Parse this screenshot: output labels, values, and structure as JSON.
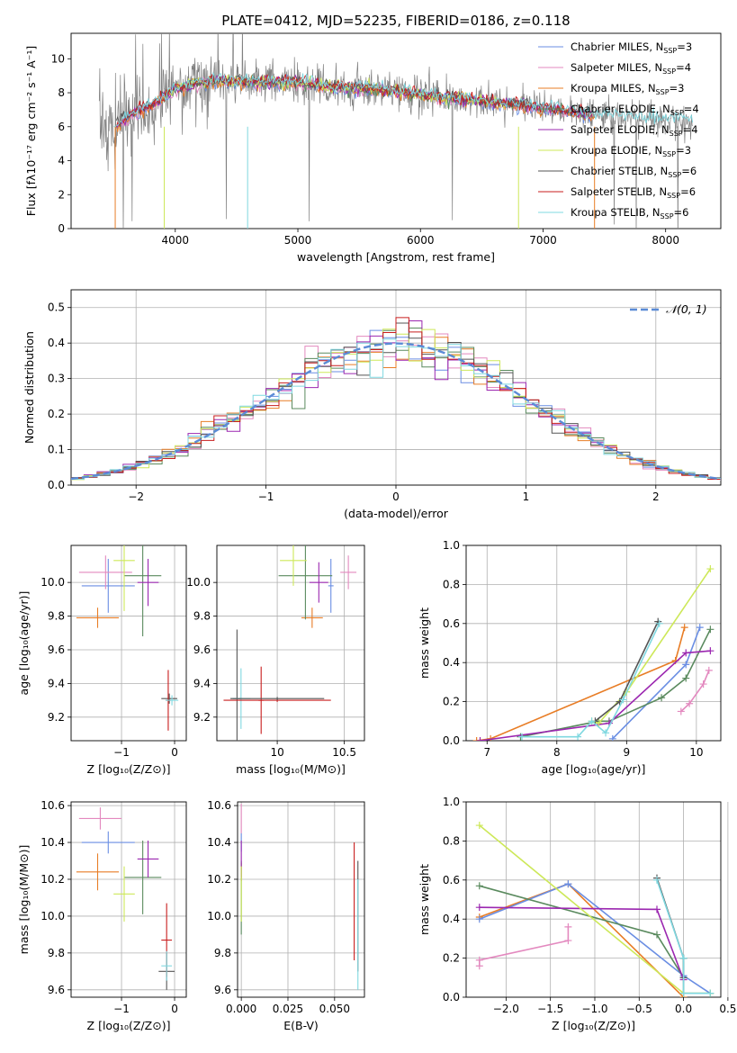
{
  "figure": {
    "title": "PLATE=0412, MJD=52235, FIBERID=0186, z=0.118"
  },
  "colors": {
    "c1": "#6a8ee3",
    "c2": "#e389bf",
    "c3": "#e87d26",
    "c4": "#5a8a5e",
    "c5": "#9b27b0",
    "c6": "#cde859",
    "c7": "#555555",
    "c8": "#c81d1d",
    "c9": "#7fd8e0",
    "data": "#808080",
    "gauss": "#5b8bd6",
    "grid": "#b0b0b0"
  },
  "chart_data": [
    {
      "id": "spectrum",
      "type": "line",
      "xlabel": "wavelength [Angstrom, rest frame]",
      "ylabel": "Flux [fλ10⁻¹⁷ erg cm⁻² s⁻¹ A⁻¹]",
      "xlim": [
        3150,
        8450
      ],
      "ylim": [
        0,
        11.5
      ],
      "xticks": [
        4000,
        5000,
        6000,
        7000,
        8000
      ],
      "yticks": [
        0,
        2,
        4,
        6,
        8,
        10
      ],
      "grid": false,
      "legend_position": "top-right",
      "legend": [
        {
          "label": "Chabrier MILES, N",
          "sub": "SSP",
          "suffix": "=3",
          "color": "#6a8ee3"
        },
        {
          "label": "Salpeter MILES, N",
          "sub": "SSP",
          "suffix": "=4",
          "color": "#e389bf"
        },
        {
          "label": "Kroupa MILES, N",
          "sub": "SSP",
          "suffix": "=3",
          "color": "#e87d26"
        },
        {
          "label": "Chabrier ELODIE, N",
          "sub": "SSP",
          "suffix": "=4",
          "color": "#5a8a5e"
        },
        {
          "label": "Salpeter ELODIE, N",
          "sub": "SSP",
          "suffix": "=4",
          "color": "#9b27b0"
        },
        {
          "label": "Kroupa ELODIE, N",
          "sub": "SSP",
          "suffix": "=3",
          "color": "#cde859"
        },
        {
          "label": "Chabrier STELIB, N",
          "sub": "SSP",
          "suffix": "=6",
          "color": "#555555"
        },
        {
          "label": "Salpeter STELIB, N",
          "sub": "SSP",
          "suffix": "=6",
          "color": "#c81d1d"
        },
        {
          "label": "Kroupa STELIB, N",
          "sub": "SSP",
          "suffix": "=6",
          "color": "#7fd8e0"
        }
      ],
      "continuum": [
        [
          3380,
          6.1
        ],
        [
          3500,
          5.9
        ],
        [
          3620,
          6.6
        ],
        [
          3700,
          6.9
        ],
        [
          3800,
          7.3
        ],
        [
          3900,
          7.7
        ],
        [
          4000,
          8.2
        ],
        [
          4100,
          8.4
        ],
        [
          4200,
          8.6
        ],
        [
          4400,
          8.7
        ],
        [
          4600,
          8.6
        ],
        [
          4800,
          8.6
        ],
        [
          5000,
          8.6
        ],
        [
          5200,
          8.4
        ],
        [
          5400,
          8.3
        ],
        [
          5600,
          8.2
        ],
        [
          5800,
          8.1
        ],
        [
          6000,
          7.9
        ],
        [
          6200,
          7.7
        ],
        [
          6400,
          7.6
        ],
        [
          6600,
          7.4
        ],
        [
          6800,
          7.3
        ],
        [
          7000,
          7.1
        ],
        [
          7200,
          6.9
        ],
        [
          7400,
          6.7
        ],
        [
          7600,
          6.6
        ],
        [
          7800,
          6.5
        ],
        [
          8000,
          6.4
        ],
        [
          8220,
          6.3
        ]
      ]
    },
    {
      "id": "residuals",
      "type": "step",
      "xlabel": "(data-model)/error",
      "ylabel": "Normed distribution",
      "xlim": [
        -2.5,
        2.5
      ],
      "ylim": [
        0,
        0.55
      ],
      "xticks": [
        -2,
        -1,
        0,
        1,
        2
      ],
      "yticks": [
        0.0,
        0.1,
        0.2,
        0.3,
        0.4,
        0.5
      ],
      "grid": true,
      "legend_position": "top-right",
      "gaussian_label": "𝒩(0, 1)",
      "bin_width": 0.1
    },
    {
      "id": "age_vs_Z",
      "type": "errorbar",
      "xlabel": "Z [log₁₀(Z/Z⊙)]",
      "ylabel": "age  [log₁₀(age/yr)]",
      "xlim": [
        -1.95,
        0.22
      ],
      "ylim": [
        9.06,
        10.22
      ],
      "xticks": [
        -1,
        0
      ],
      "yticks": [
        9.2,
        9.4,
        9.6,
        9.8,
        10.0
      ],
      "grid": true,
      "points": [
        {
          "x": -1.25,
          "y": 9.98,
          "xerr": 0.5,
          "yerr": 0.16,
          "color": "#6a8ee3"
        },
        {
          "x": -1.3,
          "y": 10.06,
          "xerr": 0.5,
          "yerr": 0.1,
          "color": "#e389bf"
        },
        {
          "x": -1.45,
          "y": 9.79,
          "xerr": 0.4,
          "yerr": 0.06,
          "color": "#e87d26"
        },
        {
          "x": -0.6,
          "y": 10.04,
          "xerr": 0.35,
          "yerr": 0.36,
          "color": "#5a8a5e"
        },
        {
          "x": -0.5,
          "y": 10.0,
          "xerr": 0.2,
          "yerr": 0.14,
          "color": "#9b27b0"
        },
        {
          "x": -0.95,
          "y": 10.13,
          "xerr": 0.2,
          "yerr": 0.3,
          "color": "#cde859"
        },
        {
          "x": -0.1,
          "y": 9.31,
          "xerr": 0.15,
          "yerr": 0.03,
          "color": "#555555"
        },
        {
          "x": -0.12,
          "y": 9.3,
          "xerr": 0.05,
          "yerr": 0.18,
          "color": "#c81d1d"
        },
        {
          "x": -0.05,
          "y": 9.3,
          "xerr": 0.12,
          "yerr": 0.03,
          "color": "#7fd8e0"
        }
      ]
    },
    {
      "id": "age_vs_mass",
      "type": "errorbar",
      "xlabel": "mass [log₁₀(M/M⊙)]",
      "ylabel": "",
      "xlim": [
        9.55,
        10.65
      ],
      "ylim": [
        9.06,
        10.22
      ],
      "xticks": [
        10.0,
        10.5
      ],
      "yticks": [
        9.2,
        9.4,
        9.6,
        9.8,
        10.0
      ],
      "grid": true,
      "points": [
        {
          "x": 10.4,
          "y": 9.98,
          "xerr": 0.02,
          "yerr": 0.16,
          "color": "#6a8ee3"
        },
        {
          "x": 10.53,
          "y": 10.06,
          "xerr": 0.06,
          "yerr": 0.1,
          "color": "#e389bf"
        },
        {
          "x": 10.26,
          "y": 9.79,
          "xerr": 0.08,
          "yerr": 0.06,
          "color": "#e87d26"
        },
        {
          "x": 10.21,
          "y": 10.04,
          "xerr": 0.2,
          "yerr": 0.26,
          "color": "#5a8a5e"
        },
        {
          "x": 10.31,
          "y": 10.0,
          "xerr": 0.07,
          "yerr": 0.12,
          "color": "#9b27b0"
        },
        {
          "x": 10.12,
          "y": 10.13,
          "xerr": 0.1,
          "yerr": 0.15,
          "color": "#cde859"
        },
        {
          "x": 9.7,
          "y": 9.31,
          "xerr": 0.03,
          "yerr": 0.41,
          "color": "#555555"
        },
        {
          "x": 9.88,
          "y": 9.3,
          "xerr": 0.02,
          "yerr": 0.2,
          "color": "#c81d1d"
        },
        {
          "x": 9.73,
          "y": 9.31,
          "xerr": 0.07,
          "yerr": 0.18,
          "color": "#7fd8e0"
        },
        {
          "x": 10.0,
          "y": 9.3,
          "xerr": 0.4,
          "yerr": 0.01,
          "color": "#c81d1d"
        },
        {
          "x": 10.0,
          "y": 9.31,
          "xerr": 0.35,
          "yerr": 0.01,
          "color": "#555555"
        }
      ]
    },
    {
      "id": "massweight_vs_age",
      "type": "line",
      "xlabel": "age  [log₁₀(age/yr)]",
      "ylabel": "mass weight",
      "xlim": [
        6.7,
        10.35
      ],
      "ylim": [
        0,
        1.0
      ],
      "xticks": [
        7,
        8,
        9,
        10
      ],
      "yticks": [
        0.0,
        0.2,
        0.4,
        0.6,
        0.8,
        1.0
      ],
      "grid": true,
      "series": [
        {
          "color": "#e389bf",
          "points": [
            [
              9.78,
              0.15
            ],
            [
              9.9,
              0.19
            ],
            [
              10.1,
              0.29
            ],
            [
              10.18,
              0.36
            ]
          ]
        },
        {
          "color": "#e87d26",
          "points": [
            [
              6.85,
              0.0
            ],
            [
              7.05,
              0.01
            ],
            [
              9.7,
              0.41
            ],
            [
              9.83,
              0.58
            ]
          ]
        },
        {
          "color": "#6a8ee3",
          "points": [
            [
              8.8,
              0.01
            ],
            [
              9.85,
              0.39
            ],
            [
              10.05,
              0.58
            ]
          ]
        },
        {
          "color": "#5a8a5e",
          "points": [
            [
              7.48,
              0.02
            ],
            [
              8.6,
              0.1
            ],
            [
              8.75,
              0.1
            ],
            [
              9.5,
              0.22
            ],
            [
              9.85,
              0.32
            ],
            [
              10.2,
              0.57
            ]
          ]
        },
        {
          "color": "#9b27b0",
          "points": [
            [
              6.9,
              0.0
            ],
            [
              8.75,
              0.09
            ],
            [
              9.85,
              0.45
            ],
            [
              10.2,
              0.46
            ]
          ]
        },
        {
          "color": "#cde859",
          "points": [
            [
              8.5,
              0.1
            ],
            [
              8.6,
              0.09
            ],
            [
              9.0,
              0.25
            ],
            [
              10.2,
              0.88
            ]
          ]
        },
        {
          "color": "#555555",
          "points": [
            [
              8.55,
              0.1
            ],
            [
              8.9,
              0.2
            ],
            [
              9.45,
              0.61
            ]
          ]
        },
        {
          "color": "#7fd8e0",
          "points": [
            [
              7.5,
              0.02
            ],
            [
              8.3,
              0.02
            ],
            [
              8.5,
              0.1
            ],
            [
              8.7,
              0.04
            ],
            [
              8.95,
              0.21
            ],
            [
              9.47,
              0.6
            ]
          ]
        }
      ]
    },
    {
      "id": "mass_vs_Z",
      "type": "errorbar",
      "xlabel": "Z [log₁₀(Z/Z⊙)]",
      "ylabel": "mass [log₁₀(M/M⊙)]",
      "xlim": [
        -1.95,
        0.22
      ],
      "ylim": [
        9.56,
        10.62
      ],
      "xticks": [
        -1,
        0
      ],
      "yticks": [
        9.6,
        9.8,
        10.0,
        10.2,
        10.4,
        10.6
      ],
      "grid": true,
      "points": [
        {
          "x": -1.25,
          "y": 10.4,
          "xerr": 0.5,
          "yerr": 0.06,
          "color": "#6a8ee3"
        },
        {
          "x": -1.4,
          "y": 10.53,
          "xerr": 0.4,
          "yerr": 0.06,
          "color": "#e389bf"
        },
        {
          "x": -1.45,
          "y": 10.24,
          "xerr": 0.4,
          "yerr": 0.1,
          "color": "#e87d26"
        },
        {
          "x": -0.6,
          "y": 10.21,
          "xerr": 0.35,
          "yerr": 0.2,
          "color": "#5a8a5e"
        },
        {
          "x": -0.5,
          "y": 10.31,
          "xerr": 0.2,
          "yerr": 0.1,
          "color": "#9b27b0"
        },
        {
          "x": -0.95,
          "y": 10.12,
          "xerr": 0.2,
          "yerr": 0.15,
          "color": "#cde859"
        },
        {
          "x": -0.15,
          "y": 9.7,
          "xerr": 0.15,
          "yerr": 0.1,
          "color": "#555555"
        },
        {
          "x": -0.15,
          "y": 9.87,
          "xerr": 0.1,
          "yerr": 0.2,
          "color": "#c81d1d"
        },
        {
          "x": -0.15,
          "y": 9.73,
          "xerr": 0.1,
          "yerr": 0.08,
          "color": "#7fd8e0"
        }
      ]
    },
    {
      "id": "mass_vs_EBV",
      "type": "errorbar",
      "xlabel": "E(B-V)",
      "ylabel": "",
      "xlim": [
        -0.002,
        0.066
      ],
      "ylim": [
        9.56,
        10.62
      ],
      "xticks": [
        0.0,
        0.025,
        0.05
      ],
      "xticklabels": [
        "0.000",
        "0.025",
        "0.050"
      ],
      "yticks": [
        9.6,
        9.8,
        10.0,
        10.2,
        10.4,
        10.6
      ],
      "grid": true,
      "points": [
        {
          "x": 0.0,
          "y": 10.4,
          "xerr": 0.0,
          "yerr": 0.05,
          "color": "#6a8ee3"
        },
        {
          "x": 0.0,
          "y": 10.53,
          "xerr": 0.0,
          "yerr": 0.08,
          "color": "#e389bf"
        },
        {
          "x": 0.0,
          "y": 10.24,
          "xerr": 0.0,
          "yerr": 0.05,
          "color": "#e87d26"
        },
        {
          "x": 0.0,
          "y": 10.1,
          "xerr": 0.0,
          "yerr": 0.2,
          "color": "#5a8a5e"
        },
        {
          "x": 0.0,
          "y": 10.31,
          "xerr": 0.0,
          "yerr": 0.1,
          "color": "#9b27b0"
        },
        {
          "x": 0.0,
          "y": 10.12,
          "xerr": 0.0,
          "yerr": 0.15,
          "color": "#cde859"
        },
        {
          "x": 0.0625,
          "y": 10.0,
          "xerr": 0.0,
          "yerr": 0.3,
          "color": "#555555"
        },
        {
          "x": 0.0605,
          "y": 10.08,
          "xerr": 0.0,
          "yerr": 0.32,
          "color": "#c81d1d"
        },
        {
          "x": 0.0625,
          "y": 9.9,
          "xerr": 0.0,
          "yerr": 0.3,
          "color": "#7fd8e0"
        }
      ]
    },
    {
      "id": "massweight_vs_Z",
      "type": "line",
      "xlabel": "Z [log₁₀(Z/Z⊙)]",
      "ylabel": "mass weight",
      "xlim": [
        -2.45,
        0.42
      ],
      "ylim": [
        0,
        1.0
      ],
      "xticks": [
        -2.0,
        -1.5,
        -1.0,
        -0.5,
        0.0,
        0.5
      ],
      "xticklabels": [
        "−2.0",
        "−1.5",
        "−1.0",
        "−0.5",
        "0.0",
        "0.5"
      ],
      "yticks": [
        0.0,
        0.2,
        0.4,
        0.6,
        0.8,
        1.0
      ],
      "grid": true,
      "series": [
        {
          "color": "#e389bf",
          "points": [
            [
              -2.3,
              0.16
            ],
            [
              -2.3,
              0.19
            ],
            [
              -1.3,
              0.29
            ],
            [
              -1.3,
              0.36
            ]
          ]
        },
        {
          "color": "#e87d26",
          "points": [
            [
              -2.3,
              0.41
            ],
            [
              -1.3,
              0.58
            ],
            [
              0.0,
              0.0
            ]
          ]
        },
        {
          "color": "#6a8ee3",
          "points": [
            [
              -2.3,
              0.4
            ],
            [
              -1.3,
              0.58
            ],
            [
              0.0,
              0.11
            ],
            [
              0.3,
              0.02
            ]
          ]
        },
        {
          "color": "#5a8a5e",
          "points": [
            [
              -2.3,
              0.57
            ],
            [
              -0.3,
              0.32
            ],
            [
              0.0,
              0.1
            ],
            [
              0.0,
              0.2
            ],
            [
              0.0,
              0.02
            ],
            [
              0.3,
              0.02
            ]
          ]
        },
        {
          "color": "#9b27b0",
          "points": [
            [
              -2.3,
              0.46
            ],
            [
              -0.3,
              0.45
            ],
            [
              0.0,
              0.09
            ]
          ]
        },
        {
          "color": "#cde859",
          "points": [
            [
              -2.3,
              0.88
            ],
            [
              0.0,
              0.02
            ],
            [
              0.3,
              0.02
            ]
          ]
        },
        {
          "color": "#555555",
          "points": [
            [
              -0.3,
              0.61
            ],
            [
              0.0,
              0.2
            ],
            [
              0.0,
              0.1
            ]
          ]
        },
        {
          "color": "#7fd8e0",
          "points": [
            [
              -0.3,
              0.6
            ],
            [
              0.0,
              0.2
            ],
            [
              0.0,
              0.02
            ],
            [
              0.3,
              0.02
            ]
          ]
        }
      ]
    }
  ]
}
